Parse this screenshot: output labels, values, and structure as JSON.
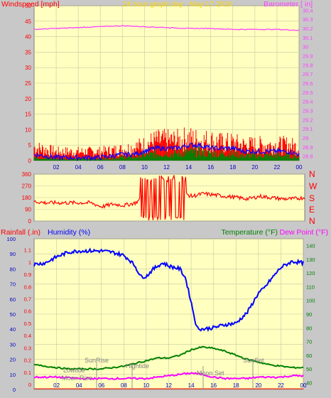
{
  "header": {
    "title": "24 hour graph day : May 17 2020",
    "wind_label": "Windspeed [mph]",
    "baro_label": "Barometer [ in]"
  },
  "direction_letters": [
    "N",
    "W",
    "S",
    "E",
    "N"
  ],
  "lower_header": {
    "rain_label": "Rainfall (.in)",
    "humidity_label": "Humidity (%)",
    "temp_label": "Temperature (°F)",
    "dew_label": "Dew Point (°F)"
  },
  "annotations": {
    "lowtide": "Lowtide",
    "moonrise": "Moon Rise",
    "sunrise": "SunRise",
    "hightide": "Hightide",
    "moonset": "Moon Set",
    "sunset": "SunSet"
  },
  "colors": {
    "plot_bg": "#ffffc0",
    "frame": "#c8c8c8",
    "grid": "#c8c8a0",
    "wind_gust": "#ff0000",
    "wind_avg": "#0000ff",
    "wind_low": "#008000",
    "barometer": "#ff40ff",
    "direction": "#ff0000",
    "humidity": "#0000ff",
    "temperature": "#008000",
    "dewpoint": "#ff00ff",
    "title": "#ffd700"
  },
  "chart_data": [
    {
      "type": "area",
      "title": "24 hour graph day : May 17 2020",
      "xlabel": "",
      "ylabel": "Windspeed [mph]",
      "ylabel_right": "Barometer [ in]",
      "x_ticks": [
        "02",
        "04",
        "06",
        "08",
        "10",
        "12",
        "14",
        "16",
        "18",
        "20",
        "22",
        "00"
      ],
      "ylim": [
        0,
        50
      ],
      "y_ticks": [
        0,
        5,
        10,
        15,
        20,
        25,
        30,
        35,
        40,
        45,
        50
      ],
      "y2lim": [
        28.75,
        30.45
      ],
      "y2_ticks": [
        "28.8",
        "28.9",
        "29",
        "29.1",
        "29.2",
        "29.3",
        "29.4",
        "29.5",
        "29.6",
        "29.7",
        "29.8",
        "29.9",
        "30",
        "30.1",
        "30.2",
        "30.3",
        "30.4"
      ],
      "grid": true,
      "series": [
        {
          "name": "Windspeed gust",
          "x": [
            0,
            2,
            4,
            6,
            8,
            9,
            10,
            11,
            12,
            13,
            14,
            15,
            16,
            17,
            18,
            19,
            20,
            21,
            22,
            23,
            24
          ],
          "values": [
            6,
            4,
            4,
            4,
            5,
            6,
            7,
            9,
            9,
            9,
            10,
            9,
            9,
            8,
            8,
            7,
            7,
            7,
            7,
            7,
            6
          ]
        },
        {
          "name": "Windspeed avg",
          "x": [
            0,
            2,
            4,
            6,
            8,
            9,
            10,
            11,
            12,
            13,
            14,
            15,
            16,
            17,
            18,
            19,
            20,
            21,
            22,
            23,
            24
          ],
          "values": [
            2,
            1,
            1,
            1,
            2,
            2,
            3,
            4,
            4,
            4,
            5,
            5,
            4,
            4,
            4,
            3,
            3,
            3,
            3,
            3,
            2
          ]
        },
        {
          "name": "Barometer",
          "x": [
            0,
            2,
            4,
            6,
            8,
            10,
            12,
            14,
            16,
            18,
            20,
            22,
            24
          ],
          "values": [
            30.19,
            30.2,
            30.21,
            30.22,
            30.23,
            30.22,
            30.21,
            30.2,
            30.2,
            30.19,
            30.19,
            30.19,
            30.18
          ]
        }
      ]
    },
    {
      "type": "line",
      "title": "",
      "ylabel": "",
      "ylim": [
        0,
        360
      ],
      "y_ticks": [
        0,
        90,
        180,
        270,
        360
      ],
      "x_ticks": [
        "02",
        "04",
        "06",
        "08",
        "10",
        "12",
        "14",
        "16",
        "18",
        "20",
        "22",
        "00"
      ],
      "series": [
        {
          "name": "Wind direction",
          "x": [
            0,
            1,
            2,
            3,
            4,
            5,
            6,
            7,
            8,
            9,
            10,
            11,
            12,
            13,
            14,
            15,
            16,
            17,
            18,
            19,
            20,
            21,
            22,
            23,
            24
          ],
          "values": [
            150,
            140,
            140,
            140,
            140,
            140,
            110,
            130,
            120,
            140,
            200,
            180,
            200,
            220,
            190,
            210,
            200,
            190,
            180,
            170,
            190,
            180,
            170,
            170,
            180
          ]
        }
      ]
    },
    {
      "type": "line",
      "title": "",
      "ylabel": "Humidity (%)",
      "ylabel_right": "Temperature (°F)",
      "ylim": [
        0,
        100
      ],
      "y_ticks": [
        0,
        10,
        20,
        30,
        40,
        50,
        60,
        70,
        80,
        90,
        100
      ],
      "rain_ticks": [
        "0",
        "0.1",
        "0.2",
        "0.3",
        "0.4",
        "0.5",
        "0.6",
        "0.7",
        "0.8",
        "0.9",
        "1",
        "1.1"
      ],
      "y2lim": [
        35,
        145
      ],
      "y2_ticks": [
        40,
        50,
        60,
        70,
        80,
        90,
        100,
        110,
        120,
        130,
        140
      ],
      "x_ticks": [
        "02",
        "04",
        "06",
        "08",
        "10",
        "12",
        "14",
        "16",
        "18",
        "20",
        "22",
        "00"
      ],
      "series": [
        {
          "name": "Humidity (%)",
          "x": [
            0,
            1,
            2,
            3,
            4,
            5,
            6,
            7,
            8,
            8.5,
            9,
            9.5,
            10,
            10.5,
            11,
            11.5,
            12,
            13,
            13.5,
            14,
            14.5,
            15,
            16,
            17,
            18,
            19,
            20,
            20.5,
            21,
            22,
            23,
            24
          ],
          "values": [
            83,
            84,
            88,
            91,
            92,
            92,
            92,
            91,
            89,
            86,
            82,
            75,
            75,
            79,
            82,
            84,
            82,
            80,
            74,
            58,
            41,
            40,
            41,
            43,
            44,
            51,
            64,
            67,
            72,
            81,
            85,
            84
          ]
        },
        {
          "name": "Temperature (°F)",
          "x": [
            0,
            1,
            2,
            3,
            4,
            5,
            6,
            7,
            8,
            9,
            10,
            11,
            12,
            13,
            14,
            15,
            16,
            17,
            18,
            19,
            20,
            21,
            22,
            23,
            24
          ],
          "values": [
            53,
            52,
            51,
            50,
            50,
            50,
            50,
            51,
            52,
            54,
            56,
            58,
            58,
            60,
            64,
            66,
            65,
            63,
            60,
            57,
            55,
            53,
            52,
            51,
            51
          ]
        },
        {
          "name": "Dew Point (°F)",
          "x": [
            0,
            2,
            4,
            6,
            8,
            10,
            12,
            13,
            14,
            15,
            16,
            17,
            18,
            19,
            20,
            21,
            22,
            23,
            24
          ],
          "values": [
            44,
            44,
            43,
            43,
            43,
            43,
            45,
            46,
            47,
            46,
            44,
            43,
            43,
            43,
            44,
            44,
            44,
            45,
            45
          ]
        },
        {
          "name": "Rainfall (.in)",
          "x": [
            0,
            24
          ],
          "values": [
            0,
            0
          ]
        }
      ]
    }
  ]
}
